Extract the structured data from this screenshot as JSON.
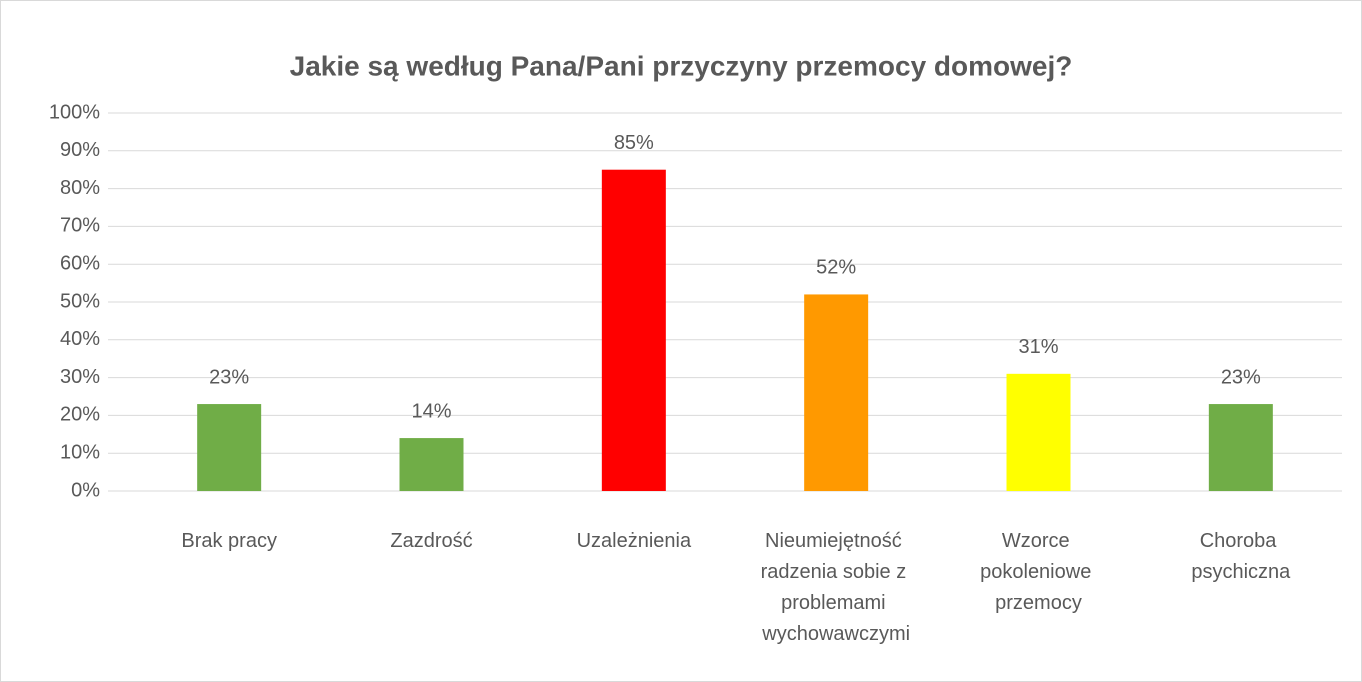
{
  "chart_data": {
    "type": "bar",
    "title": "Jakie są według Pana/Pani przyczyny przemocy domowej?",
    "categories": [
      "Brak pracy",
      "Zazdrość",
      "Uzależnienia",
      "Nieumiejętność radzenia sobie z problemami wychowawczymi",
      "Wzorce pokoleniowe przemocy",
      "Choroba psychiczna"
    ],
    "values": [
      23,
      14,
      85,
      52,
      31,
      23
    ],
    "value_labels": [
      "23%",
      "14%",
      "85%",
      "52%",
      "31%",
      "23%"
    ],
    "colors": [
      "#70ad47",
      "#70ad47",
      "#ff0000",
      "#ff9900",
      "#ffff00",
      "#70ad47"
    ],
    "ylim": [
      0,
      100
    ],
    "yticks": [
      {
        "value": 0,
        "label": "0%"
      },
      {
        "value": 10,
        "label": "10%"
      },
      {
        "value": 20,
        "label": "20%"
      },
      {
        "value": 30,
        "label": "30%"
      },
      {
        "value": 40,
        "label": "40%"
      },
      {
        "value": 50,
        "label": "50%"
      },
      {
        "value": 60,
        "label": "60%"
      },
      {
        "value": 70,
        "label": "70%"
      },
      {
        "value": 80,
        "label": "80%"
      },
      {
        "value": 90,
        "label": "90%"
      },
      {
        "value": 100,
        "label": "100%"
      }
    ],
    "grid": true
  }
}
